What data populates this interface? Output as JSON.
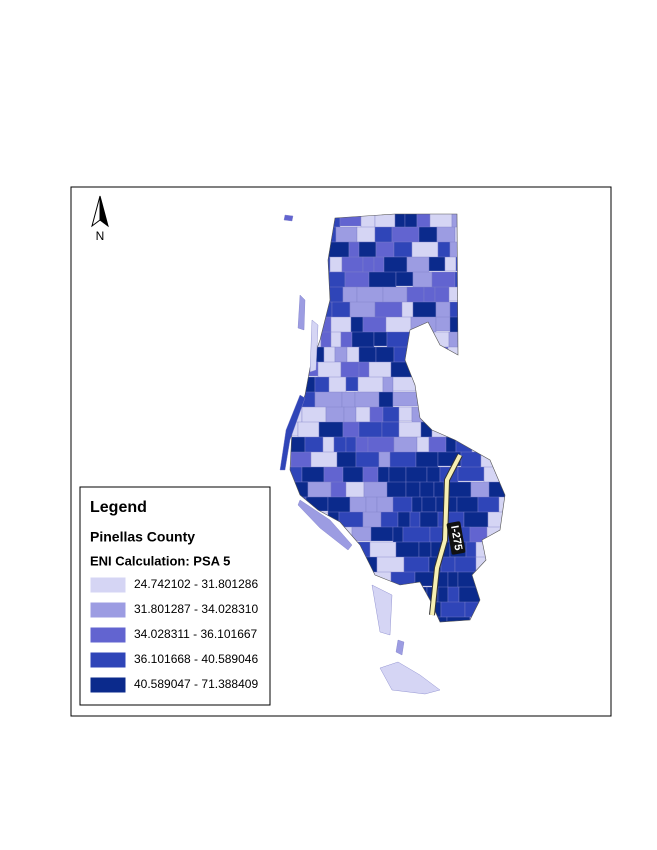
{
  "north_arrow": {
    "label": "N"
  },
  "road_label": "I-275",
  "legend": {
    "title": "Legend",
    "layer": "Pinellas County",
    "field": "ENI Calculation: PSA 5",
    "classes": [
      {
        "label": "24.742102 - 31.801286",
        "color": "#d5d5f4"
      },
      {
        "label": "31.801287 - 34.028310",
        "color": "#9c9ce2"
      },
      {
        "label": "34.028311 - 36.101667",
        "color": "#6264d0"
      },
      {
        "label": "36.101668 - 40.589046",
        "color": "#2f45b8"
      },
      {
        "label": "40.589047 - 71.388409",
        "color": "#0b2a8c"
      }
    ]
  }
}
